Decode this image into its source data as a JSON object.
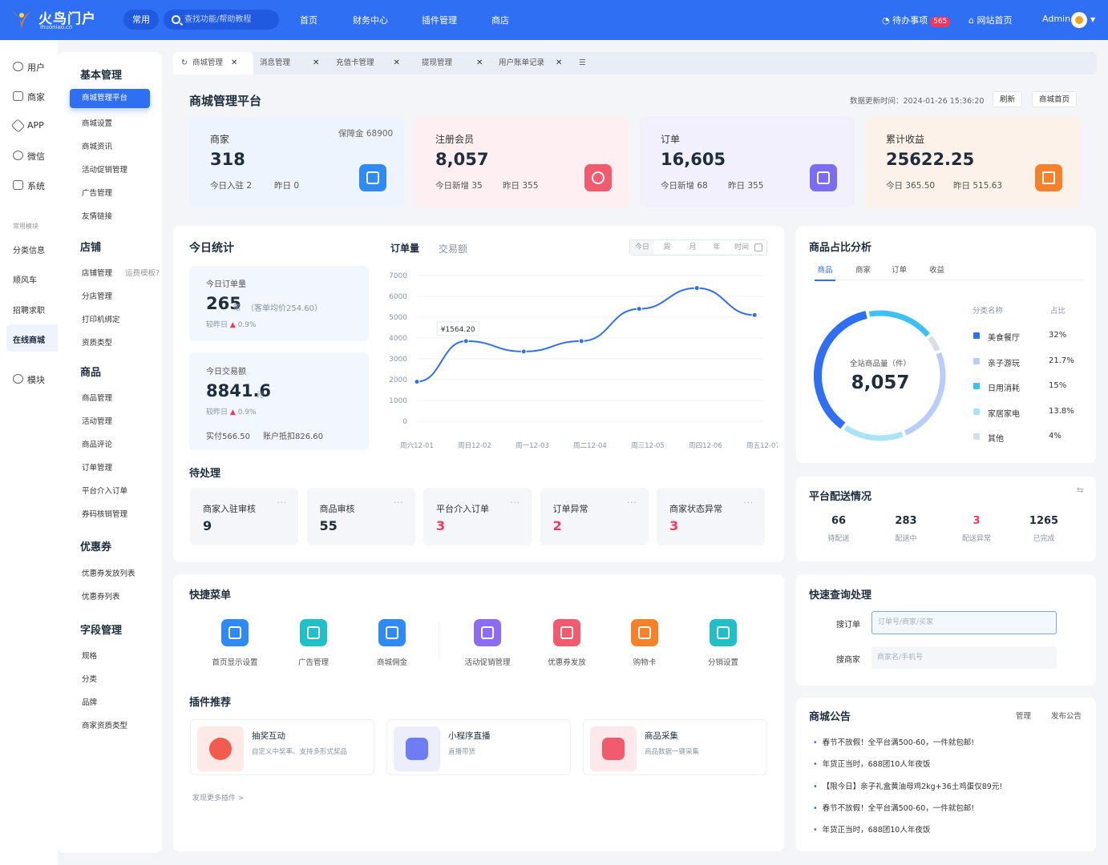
{
  "topbar": {
    "brand": "火鸟门户",
    "brand_sub": "ihuoniao.cn",
    "common_label": "常用",
    "search_placeholder": "查找功能/帮助教程",
    "nav": [
      "首页",
      "财务中心",
      "插件管理",
      "商店"
    ],
    "todo_label": "待办事项",
    "todo_count": "565",
    "site_home_label": "网站首页",
    "user_name": "Admin"
  },
  "rail": {
    "items": [
      "用户",
      "商家",
      "APP",
      "微信",
      "系统"
    ],
    "section_label": "常用模块",
    "modules": [
      "分类信息",
      "顺风车",
      "招聘求职",
      "在线商城"
    ],
    "bottom_item": "模块"
  },
  "side2": {
    "sections": [
      {
        "title": "基本管理",
        "items": [
          "商城管理平台",
          "商城设置",
          "商城资讯",
          "活动促销管理",
          "广告管理",
          "友情链接"
        ]
      },
      {
        "title": "店铺",
        "items": [
          "店铺管理",
          "分店管理",
          "打印机绑定",
          "资质类型"
        ],
        "extra": "运费模板?"
      },
      {
        "title": "商品",
        "items": [
          "商品管理",
          "活动管理",
          "商品评论",
          "订单管理",
          "平台介入订单",
          "券码核销管理"
        ]
      },
      {
        "title": "优惠券",
        "items": [
          "优惠券发放列表",
          "优惠券列表"
        ]
      },
      {
        "title": "字段管理",
        "items": [
          "规格",
          "分类",
          "品牌",
          "商家资质类型"
        ]
      }
    ]
  },
  "tabs": [
    "商城管理",
    "消息管理",
    "充值卡管理",
    "提现管理",
    "用户账单记录"
  ],
  "page": {
    "title": "商城管理平台",
    "update_label": "数据更新时间：",
    "update_time": "2024-01-26 15:36:20",
    "refresh_btn": "刷新",
    "home_btn": "商城首页"
  },
  "stats": [
    {
      "label": "商家",
      "value": "318",
      "extra": "保障金 68900",
      "sub1": "今日入驻 2",
      "sub2": "昨日 0",
      "color": "#2f8af5",
      "bg": "#eef4fe",
      "icon": "store-icon"
    },
    {
      "label": "注册会员",
      "value": "8,057",
      "sub1": "今日新增 35",
      "sub2": "昨日 355",
      "color": "#f25b6e",
      "bg": "#fdeff2",
      "icon": "members-icon"
    },
    {
      "label": "订单",
      "value": "16,605",
      "sub1": "今日新增 68",
      "sub2": "昨日 355",
      "color": "#7b6cf3",
      "bg": "#f2f0fd",
      "icon": "order-icon"
    },
    {
      "label": "累计收益",
      "value": "25622.25",
      "sub1": "今日 365.50",
      "sub2": "昨日 515.63",
      "color": "#f7812b",
      "bg": "#fdf2ea",
      "icon": "revenue-icon"
    }
  ],
  "today": {
    "title": "今日统计",
    "orders_label": "今日订单量",
    "orders_value": "265",
    "orders_unit": "笔",
    "orders_avg": "（客单均价254.60）",
    "orders_cmp_label": "较昨日",
    "orders_cmp": "0.9%",
    "amount_label": "今日交易额",
    "amount_value": "8841.6",
    "amount_unit": "元",
    "amount_cmp_label": "较昨日",
    "amount_cmp": "0.9%",
    "paid": "实付566.50",
    "deduct": "账户抵扣826.60"
  },
  "chart_tabs": {
    "active": "订单量",
    "other": "交易额",
    "ranges": [
      "今日",
      "周",
      "月",
      "年",
      "时间"
    ]
  },
  "chart_data": {
    "type": "line",
    "x": [
      "周六12-01",
      "周日12-02",
      "周一12-03",
      "周二12-04",
      "周三12-05",
      "周四12-06",
      "周五12-07"
    ],
    "y_ticks": [
      0,
      1000,
      2000,
      3000,
      4000,
      5000,
      6000,
      7000
    ],
    "ylim": [
      0,
      7000
    ],
    "series": [
      {
        "values": [
          [
            0,
            1900
          ],
          [
            0.85,
            3850
          ],
          [
            1.85,
            3350
          ],
          [
            2.85,
            3850
          ],
          [
            3.85,
            5400
          ],
          [
            4.85,
            6400
          ],
          [
            5.85,
            5100
          ]
        ]
      }
    ],
    "tooltip": "¥1564.20",
    "color": "#2f6ff3"
  },
  "pending": {
    "title": "待处理",
    "items": [
      {
        "label": "商家入驻审核",
        "value": "9",
        "color": "#1f2d3d"
      },
      {
        "label": "商品审核",
        "value": "55",
        "color": "#1f2d3d"
      },
      {
        "label": "平台介入订单",
        "value": "3",
        "color": "#f5365c"
      },
      {
        "label": "订单异常",
        "value": "2",
        "color": "#f5365c"
      },
      {
        "label": "商家状态异常",
        "value": "3",
        "color": "#f5365c"
      }
    ]
  },
  "share": {
    "title": "商品占比分析",
    "tabs": [
      "商品",
      "商家",
      "订单",
      "收益"
    ],
    "center_label": "全站商品量（件）",
    "center_value": "8,057",
    "col_name": "分类名称",
    "col_pct": "占比",
    "rows": [
      {
        "name": "美食餐厅",
        "pct": "32%",
        "value": 32,
        "color": "#2f6ff3"
      },
      {
        "name": "亲子游玩",
        "pct": "21.7%",
        "value": 21.7,
        "color": "#b9cdfb"
      },
      {
        "name": "日用消耗",
        "pct": "15%",
        "value": 15,
        "color": "#3ec0f0"
      },
      {
        "name": "家居家电",
        "pct": "13.8%",
        "value": 13.8,
        "color": "#a9e3f8"
      },
      {
        "name": "其他",
        "pct": "4%",
        "value": 4,
        "color": "#d9dde4"
      }
    ]
  },
  "delivery": {
    "title": "平台配送情况",
    "items": [
      {
        "value": "66",
        "label": "待配送",
        "color": "#1f2d3d"
      },
      {
        "value": "283",
        "label": "配送中",
        "color": "#1f2d3d"
      },
      {
        "value": "3",
        "label": "配送异常",
        "color": "#f5365c"
      },
      {
        "value": "1265",
        "label": "已完成",
        "color": "#1f2d3d"
      }
    ]
  },
  "quick": {
    "title": "快捷菜单",
    "items": [
      {
        "label": "首页显示设置",
        "color": "#2f8af5",
        "icon": "display-settings-icon"
      },
      {
        "label": "广告管理",
        "color": "#21c0c9",
        "icon": "ad-icon"
      },
      {
        "label": "商城佣金",
        "color": "#2f8af5",
        "icon": "commission-icon"
      },
      {
        "label": "活动促销管理",
        "color": "#8b6cf3",
        "icon": "promotion-icon"
      },
      {
        "label": "优惠券发放",
        "color": "#f25b6e",
        "icon": "coupon-icon"
      },
      {
        "label": "购物卡",
        "color": "#f7812b",
        "icon": "shopping-card-icon"
      },
      {
        "label": "分销设置",
        "color": "#21c0c9",
        "icon": "distribution-icon"
      }
    ]
  },
  "plugins": {
    "title": "插件推荐",
    "items": [
      {
        "title": "抽奖互动",
        "sub": "自定义中奖率、支持多形式奖品",
        "color": "#f25b4e",
        "bg": "#fde9e6",
        "icon": "lottery-icon"
      },
      {
        "title": "小程序直播",
        "sub": "直播带货",
        "color": "#6f7df5",
        "bg": "#eceefd",
        "icon": "live-icon"
      },
      {
        "title": "商品采集",
        "sub": "商品数据一键采集",
        "color": "#f25b6e",
        "bg": "#fde8ec",
        "icon": "collect-icon"
      }
    ],
    "more": "发现更多插件 >"
  },
  "lookup": {
    "title": "快速查询处理",
    "order_label": "搜订单",
    "order_placeholder": "订单号/商家/买家",
    "merchant_label": "搜商家",
    "merchant_placeholder": "商家名/手机号"
  },
  "notice": {
    "title": "商城公告",
    "manage": "管理",
    "publish": "发布公告",
    "items": [
      "春节不放假！全平台满500-60，一件就包邮!",
      "年货正当时，688团10人年夜饭",
      "【限今日】亲子礼盒黄油母鸡2kg+36土鸡蛋仅89元!",
      "春节不放假！全平台满500-60，一件就包邮!",
      "年货正当时，688团10人年夜饭"
    ]
  }
}
